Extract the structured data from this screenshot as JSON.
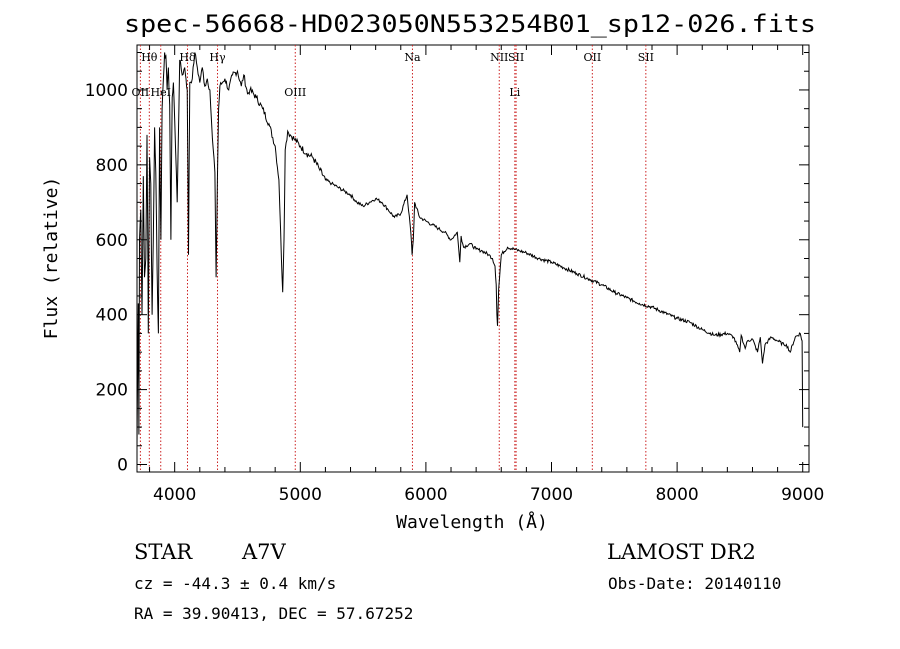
{
  "chart_data": {
    "type": "line",
    "title": "spec-56668-HD023050N553254B01_sp12-026.fits",
    "xlabel": "Wavelength (Å)",
    "ylabel": "Flux (relative)",
    "xlim": [
      3700,
      9050
    ],
    "ylim": [
      -20,
      1120
    ],
    "x_ticks": [
      4000,
      5000,
      6000,
      7000,
      8000,
      9000
    ],
    "y_ticks": [
      0,
      200,
      400,
      600,
      800,
      1000
    ],
    "grid": false,
    "series": [
      {
        "x": [
          3700,
          3710,
          3715,
          3720,
          3730,
          3740,
          3750,
          3760,
          3770,
          3780,
          3790,
          3800,
          3810,
          3820,
          3830,
          3840,
          3850,
          3860,
          3870,
          3880,
          3890,
          3900,
          3910,
          3920,
          3930,
          3940,
          3950,
          3960,
          3970,
          3980,
          3990,
          4000,
          4020,
          4040,
          4060,
          4080,
          4090,
          4100,
          4110,
          4120,
          4140,
          4160,
          4180,
          4200,
          4220,
          4240,
          4260,
          4280,
          4300,
          4320,
          4330,
          4340,
          4350,
          4360,
          4380,
          4400,
          4430,
          4460,
          4500,
          4530,
          4550,
          4580,
          4600,
          4650,
          4700,
          4750,
          4800,
          4830,
          4850,
          4860,
          4870,
          4880,
          4900,
          4920,
          4950,
          5000,
          5050,
          5100,
          5150,
          5200,
          5250,
          5300,
          5350,
          5400,
          5450,
          5500,
          5550,
          5600,
          5650,
          5700,
          5750,
          5800,
          5850,
          5880,
          5890,
          5900,
          5910,
          5950,
          6000,
          6050,
          6100,
          6150,
          6200,
          6250,
          6270,
          6280,
          6300,
          6350,
          6400,
          6450,
          6500,
          6530,
          6550,
          6560,
          6565,
          6570,
          6580,
          6600,
          6650,
          6700,
          6750,
          6800,
          6900,
          7000,
          7100,
          7200,
          7300,
          7400,
          7500,
          7600,
          7700,
          7800,
          7900,
          8000,
          8100,
          8200,
          8300,
          8400,
          8450,
          8498,
          8510,
          8542,
          8560,
          8600,
          8640,
          8662,
          8680,
          8700,
          8750,
          8800,
          8850,
          8870,
          8900,
          8940,
          8980,
          8995,
          9000
        ],
        "y": [
          50,
          430,
          80,
          600,
          680,
          400,
          770,
          500,
          550,
          880,
          350,
          820,
          750,
          400,
          600,
          900,
          780,
          520,
          350,
          900,
          600,
          950,
          1030,
          1100,
          1090,
          1000,
          1060,
          960,
          600,
          980,
          1020,
          920,
          700,
          1080,
          1040,
          1060,
          1030,
          1000,
          560,
          1020,
          1030,
          1100,
          1060,
          1020,
          1060,
          1010,
          1030,
          1000,
          870,
          780,
          500,
          760,
          950,
          1010,
          1020,
          1030,
          1000,
          1040,
          1050,
          1010,
          1040,
          990,
          1000,
          980,
          950,
          910,
          850,
          760,
          550,
          460,
          600,
          840,
          890,
          880,
          870,
          850,
          830,
          820,
          790,
          760,
          750,
          740,
          730,
          720,
          700,
          690,
          700,
          710,
          700,
          680,
          660,
          670,
          720,
          620,
          560,
          600,
          700,
          660,
          650,
          640,
          630,
          620,
          600,
          620,
          540,
          610,
          580,
          590,
          575,
          570,
          560,
          550,
          530,
          480,
          400,
          370,
          470,
          560,
          580,
          575,
          570,
          565,
          550,
          540,
          525,
          510,
          495,
          480,
          460,
          445,
          430,
          420,
          405,
          390,
          380,
          360,
          345,
          350,
          340,
          300,
          345,
          310,
          330,
          335,
          300,
          340,
          270,
          320,
          340,
          330,
          320,
          320,
          300,
          340,
          350,
          330,
          100
        ]
      }
    ],
    "line_markers": [
      {
        "label": "Hθ",
        "x": 3798,
        "row": 1
      },
      {
        "label": "OII",
        "x": 3727,
        "row": 2
      },
      {
        "label": "HeI",
        "x": 3889,
        "row": 2
      },
      {
        "label": "Hδ",
        "x": 4102,
        "row": 1
      },
      {
        "label": "Hγ",
        "x": 4341,
        "row": 1
      },
      {
        "label": "OIII",
        "x": 4960,
        "row": 2
      },
      {
        "label": "Na",
        "x": 5893,
        "row": 1
      },
      {
        "label": "NII",
        "x": 6584,
        "row": 1
      },
      {
        "label": "SII",
        "x": 6718,
        "row": 1
      },
      {
        "label": "Li",
        "x": 6708,
        "row": 2
      },
      {
        "label": "OII",
        "x": 7325,
        "row": 1
      },
      {
        "label": "SII",
        "x": 7751,
        "row": 1
      }
    ]
  },
  "info": {
    "object_type": "STAR",
    "subclass": "A7V",
    "survey": "LAMOST DR2",
    "cz": "cz = -44.3 ± 0.4 km/s",
    "obs_date": "Obs-Date: 20140110",
    "coords": "RA =  39.90413, DEC =  57.67252"
  }
}
